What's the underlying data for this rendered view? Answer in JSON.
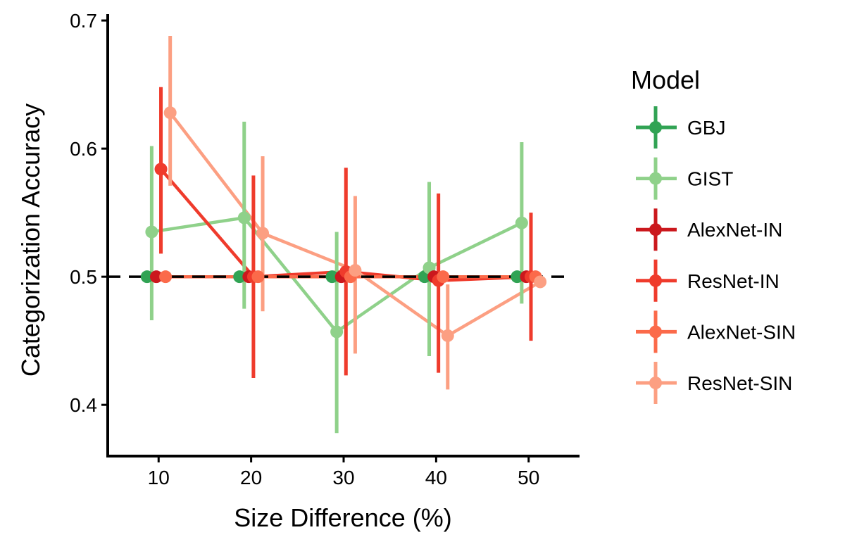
{
  "chart_data": {
    "type": "line",
    "xlabel": "Size Difference (%)",
    "ylabel": "Categorization Accuracy",
    "xlim": [
      4.5,
      55.5
    ],
    "ylim": [
      0.36,
      0.705
    ],
    "x_ticks": [
      10,
      20,
      30,
      40,
      50
    ],
    "y_ticks": [
      0.4,
      0.5,
      0.6,
      0.7
    ],
    "x_tick_labels": [
      "10",
      "20",
      "30",
      "40",
      "50"
    ],
    "y_tick_labels": [
      "0.4",
      "0.5",
      "0.6",
      "0.7"
    ],
    "reference_line": {
      "y": 0.5,
      "style": "dashed",
      "color": "#000000"
    },
    "dodge_offsets": [
      -1.25,
      -0.75,
      -0.25,
      0.25,
      0.75,
      1.25
    ],
    "grid": false,
    "legend": {
      "title": "Model",
      "position": "right"
    },
    "x": [
      10,
      20,
      30,
      40,
      50
    ],
    "series": [
      {
        "name": "GBJ",
        "color": "#31a354",
        "values": [
          0.5,
          0.5,
          0.5,
          0.5,
          0.5
        ],
        "lower": [
          0.5,
          0.5,
          0.5,
          0.5,
          0.5
        ],
        "upper": [
          0.5,
          0.5,
          0.5,
          0.5,
          0.5
        ]
      },
      {
        "name": "GIST",
        "color": "#8fd18a",
        "values": [
          0.535,
          0.546,
          0.457,
          0.507,
          0.542
        ],
        "lower": [
          0.466,
          0.475,
          0.378,
          0.438,
          0.479
        ],
        "upper": [
          0.602,
          0.621,
          0.535,
          0.574,
          0.605
        ]
      },
      {
        "name": "AlexNet-IN",
        "color": "#cb181d",
        "values": [
          0.5,
          0.5,
          0.5,
          0.5,
          0.5
        ],
        "lower": [
          0.5,
          0.5,
          0.5,
          0.5,
          0.5
        ],
        "upper": [
          0.5,
          0.5,
          0.5,
          0.5,
          0.5
        ]
      },
      {
        "name": "ResNet-IN",
        "color": "#ef3b2c",
        "values": [
          0.584,
          0.5,
          0.504,
          0.497,
          0.5
        ],
        "lower": [
          0.518,
          0.421,
          0.423,
          0.425,
          0.45
        ],
        "upper": [
          0.648,
          0.579,
          0.585,
          0.565,
          0.55
        ]
      },
      {
        "name": "AlexNet-SIN",
        "color": "#fb6a4a",
        "values": [
          0.5,
          0.5,
          0.5,
          0.5,
          0.5
        ],
        "lower": [
          0.5,
          0.5,
          0.5,
          0.5,
          0.5
        ],
        "upper": [
          0.5,
          0.5,
          0.5,
          0.5,
          0.5
        ]
      },
      {
        "name": "ResNet-SIN",
        "color": "#fc9f82",
        "values": [
          0.628,
          0.534,
          0.505,
          0.454,
          0.496
        ],
        "lower": [
          0.571,
          0.473,
          0.44,
          0.412,
          0.496
        ],
        "upper": [
          0.688,
          0.594,
          0.563,
          0.494,
          0.496
        ]
      }
    ]
  }
}
